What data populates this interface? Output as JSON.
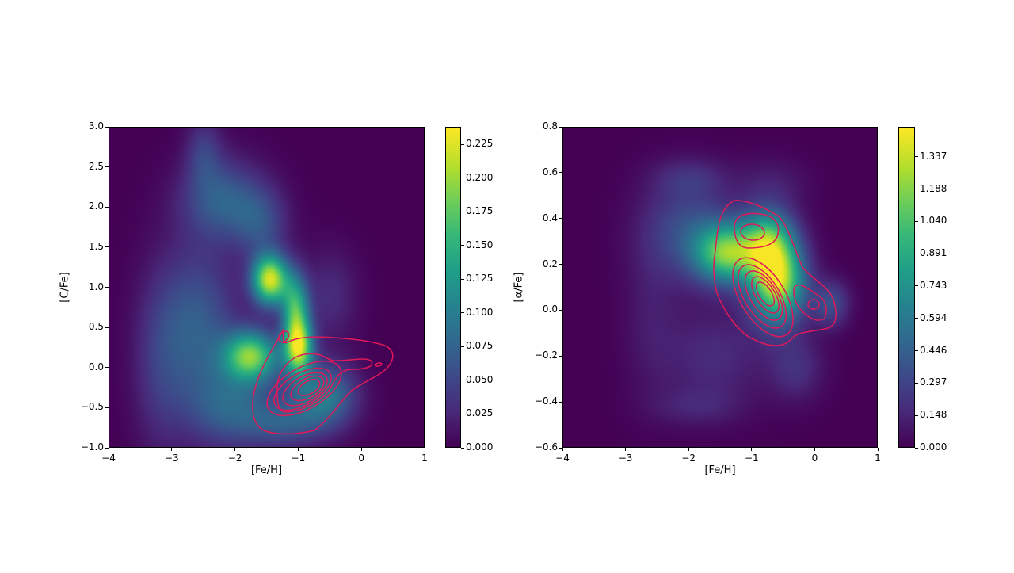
{
  "chart_data": [
    {
      "type": "heatmap",
      "xlabel": "[Fe/H]",
      "ylabel": "[C/Fe]",
      "xlim": [
        -4,
        1
      ],
      "ylim": [
        -1.0,
        3.0
      ],
      "xticks": [
        "−4",
        "−3",
        "−2",
        "−1",
        "0",
        "1"
      ],
      "xtick_values": [
        -4,
        -3,
        -2,
        -1,
        0,
        1
      ],
      "yticks": [
        "−1.0",
        "−0.5",
        "0.0",
        "0.5",
        "1.0",
        "1.5",
        "2.0",
        "2.5",
        "3.0"
      ],
      "ytick_values": [
        -1.0,
        -0.5,
        0.0,
        0.5,
        1.0,
        1.5,
        2.0,
        2.5,
        3.0
      ],
      "colormap": "viridis",
      "colorbar": {
        "ticks": [
          "0.000",
          "0.025",
          "0.050",
          "0.075",
          "0.100",
          "0.125",
          "0.150",
          "0.175",
          "0.200",
          "0.225"
        ],
        "tick_values": [
          0.0,
          0.025,
          0.05,
          0.075,
          0.1,
          0.125,
          0.15,
          0.175,
          0.2,
          0.225
        ],
        "range": [
          0.0,
          0.238
        ]
      },
      "density_peaks": [
        {
          "x": -1.45,
          "y": 1.1
        },
        {
          "x": -1.0,
          "y": 0.2
        },
        {
          "x": -1.7,
          "y": 0.2
        }
      ],
      "contour_color": "#e0195a",
      "contour_peak": {
        "x": -0.7,
        "y": -0.3
      }
    },
    {
      "type": "heatmap",
      "xlabel": "[Fe/H]",
      "ylabel": "[α/Fe]",
      "xlim": [
        -4,
        1
      ],
      "ylim": [
        -0.6,
        0.8
      ],
      "xticks": [
        "−4",
        "−3",
        "−2",
        "−1",
        "0",
        "1"
      ],
      "xtick_values": [
        -4,
        -3,
        -2,
        -1,
        0,
        1
      ],
      "yticks": [
        "−0.6",
        "−0.4",
        "−0.2",
        "0.0",
        "0.2",
        "0.4",
        "0.6",
        "0.8"
      ],
      "ytick_values": [
        -0.6,
        -0.4,
        -0.2,
        0.0,
        0.2,
        0.4,
        0.6,
        0.8
      ],
      "colormap": "viridis",
      "colorbar": {
        "ticks": [
          "0.000",
          "0.148",
          "0.297",
          "0.446",
          "0.594",
          "0.743",
          "0.891",
          "1.040",
          "1.188",
          "1.337"
        ],
        "tick_values": [
          0.0,
          0.148,
          0.297,
          0.446,
          0.594,
          0.743,
          0.891,
          1.04,
          1.188,
          1.337
        ],
        "range": [
          0.0,
          1.475
        ]
      },
      "density_peaks": [
        {
          "x": -0.6,
          "y": 0.15
        },
        {
          "x": -1.4,
          "y": 0.25
        }
      ],
      "contour_color": "#e0195a",
      "contour_peak": {
        "x": -0.55,
        "y": 0.07
      }
    }
  ]
}
